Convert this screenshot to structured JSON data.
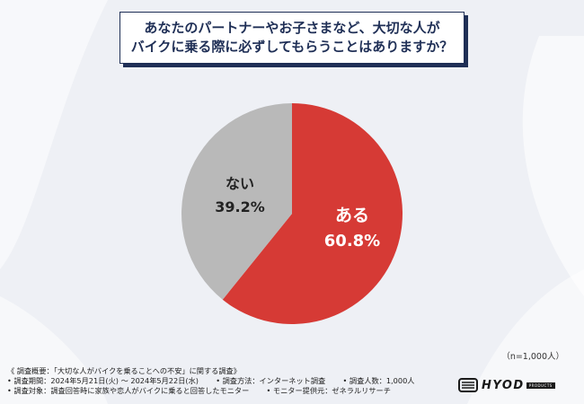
{
  "title": {
    "line1": "あなたのパートナーやお子さまなど、大切な人が",
    "line2": "バイクに乗る際に必ずしてもらうことはありますか？"
  },
  "sample_note": "（n=1,000人）",
  "survey": {
    "heading": "《 調査概要：「大切な人がバイクを乗ることへの不安」に関する調査》",
    "period": "• 調査期間：2024年5月21日(火) ～ 2024年5月22日(水)",
    "method": "• 調査方法：インターネット調査",
    "respondents": "• 調査人数：1,000人",
    "target": "• 調査対象：調査回答時に家族や恋人がバイクに乗ると回答したモニター",
    "provider": "• モニター提供元：ゼネラルリサーチ"
  },
  "logo": {
    "text": "HYOD",
    "sub": "PRODUCTS"
  },
  "colors": {
    "navy": "#1f2f56",
    "red": "#d63a35",
    "gray": "#b9b9b9"
  },
  "chart_data": {
    "type": "pie",
    "slices": [
      {
        "label": "ある",
        "value": 60.8,
        "display": "60.8%",
        "color": "#d63a35"
      },
      {
        "label": "ない",
        "value": 39.2,
        "display": "39.2%",
        "color": "#b9b9b9"
      }
    ]
  }
}
